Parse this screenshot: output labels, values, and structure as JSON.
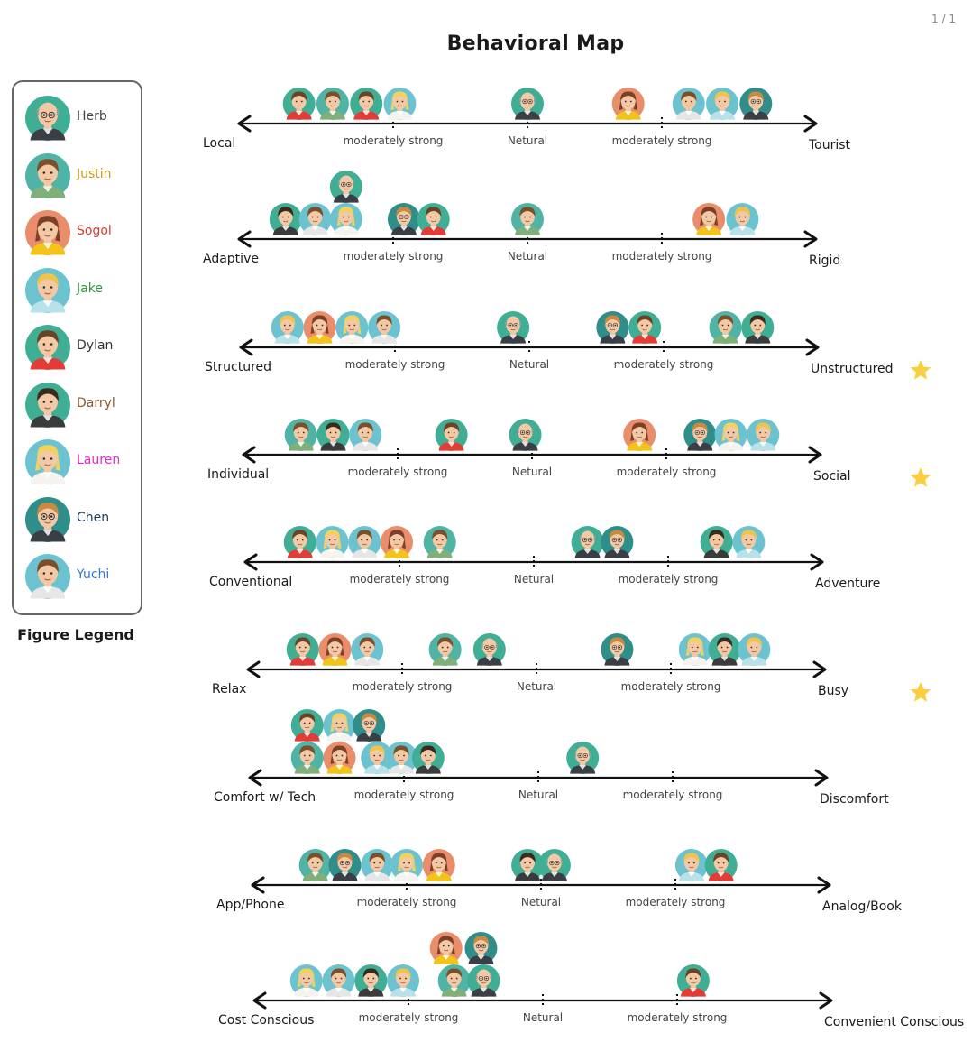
{
  "page_indicator": "1 / 1",
  "title": "Behavioral Map",
  "legend": {
    "caption": "Figure Legend",
    "people": [
      {
        "id": "herb",
        "name": "Herb",
        "name_color": "#444444",
        "skin": "#f3c9a5",
        "hair": "#9aa0a0",
        "shirt": "#3a3f46",
        "bg": "#3fae95",
        "glasses": true,
        "bald": true
      },
      {
        "id": "justin",
        "name": "Justin",
        "name_color": "#c59a16",
        "skin": "#f3c9a5",
        "hair": "#7a4f2a",
        "shirt": "#7fb07a",
        "bg": "#4fb3a6",
        "glasses": false,
        "bald": false
      },
      {
        "id": "sogol",
        "name": "Sogol",
        "name_color": "#d43b2e",
        "skin": "#f3c9a5",
        "hair": "#7a4128",
        "shirt": "#f2c319",
        "bg": "#e98d6b",
        "glasses": false,
        "bald": false
      },
      {
        "id": "jake",
        "name": "Jake",
        "name_color": "#2f9a3a",
        "skin": "#f3c9a5",
        "hair": "#f0c34a",
        "shirt": "#b9e1ea",
        "bg": "#6cc3cf",
        "glasses": false,
        "bald": false
      },
      {
        "id": "dylan",
        "name": "Dylan",
        "name_color": "#333333",
        "skin": "#f3c9a5",
        "hair": "#6b4425",
        "shirt": "#e33b36",
        "bg": "#3fae95",
        "glasses": false,
        "bald": false
      },
      {
        "id": "darryl",
        "name": "Darryl",
        "name_color": "#8a5a2a",
        "skin": "#f3c9a5",
        "hair": "#3b2a1f",
        "shirt": "#3b3b3b",
        "bg": "#3fae95",
        "glasses": false,
        "bald": false
      },
      {
        "id": "lauren",
        "name": "Lauren",
        "name_color": "#e028c9",
        "skin": "#f3c9a5",
        "hair": "#f3d25c",
        "shirt": "#f6f3ef",
        "bg": "#6cc3cf",
        "glasses": false,
        "bald": false
      },
      {
        "id": "chen",
        "name": "Chen",
        "name_color": "#1f3a5a",
        "skin": "#f3c9a5",
        "hair": "#c9893f",
        "shirt": "#3a3f46",
        "bg": "#2f8e8a",
        "glasses": true,
        "bald": false
      },
      {
        "id": "yuchi",
        "name": "Yuchi",
        "name_color": "#2d7ad6",
        "skin": "#f3c9a5",
        "hair": "#7a4f2a",
        "shirt": "#e6e6e6",
        "bg": "#6cc3cf",
        "glasses": false,
        "bald": false
      }
    ]
  },
  "tick_labels": {
    "left": "moderately strong",
    "center": "Netural",
    "right": "moderately strong"
  },
  "star_color": "#f9cf3f",
  "chart_data": {
    "type": "diagram",
    "scale_positions": [
      -2,
      -1,
      0,
      1,
      2
    ],
    "rows": [
      {
        "left": "Local",
        "right": "Tourist",
        "starred": false,
        "tick_label_color": "#555555",
        "placements": [
          {
            "p": "dylan",
            "v": -1.7
          },
          {
            "p": "justin",
            "v": -1.45
          },
          {
            "p": "dylan",
            "v": -1.2
          },
          {
            "p": "lauren",
            "v": -0.95
          },
          {
            "p": "herb",
            "v": 0.0
          },
          {
            "p": "sogol",
            "v": 0.75
          },
          {
            "p": "yuchi",
            "v": 1.2
          },
          {
            "p": "jake",
            "v": 1.45
          },
          {
            "p": "chen",
            "v": 1.7
          }
        ]
      },
      {
        "left": "Adaptive",
        "right": "Rigid",
        "starred": false,
        "tick_label_color": "#555555",
        "placements": [
          {
            "p": "darryl",
            "v": -1.8
          },
          {
            "p": "yuchi",
            "v": -1.58
          },
          {
            "p": "lauren",
            "v": -1.35
          },
          {
            "p": "herb",
            "v": -1.35,
            "level": 2
          },
          {
            "p": "chen",
            "v": -0.92
          },
          {
            "p": "dylan",
            "v": -0.7
          },
          {
            "p": "justin",
            "v": 0.0
          },
          {
            "p": "sogol",
            "v": 1.35
          },
          {
            "p": "jake",
            "v": 1.6
          }
        ]
      },
      {
        "left": "Structured",
        "right": "Unstructured",
        "starred": true,
        "tick_label_color": "#555555",
        "placements": [
          {
            "p": "jake",
            "v": -1.8
          },
          {
            "p": "sogol",
            "v": -1.56
          },
          {
            "p": "lauren",
            "v": -1.32
          },
          {
            "p": "yuchi",
            "v": -1.08
          },
          {
            "p": "herb",
            "v": -0.12
          },
          {
            "p": "chen",
            "v": 0.62
          },
          {
            "p": "dylan",
            "v": 0.86
          },
          {
            "p": "justin",
            "v": 1.46
          },
          {
            "p": "darryl",
            "v": 1.7
          }
        ]
      },
      {
        "left": "Individual",
        "right": "Social",
        "starred": true,
        "tick_label_color": "#555555",
        "placements": [
          {
            "p": "justin",
            "v": -1.72
          },
          {
            "p": "darryl",
            "v": -1.48
          },
          {
            "p": "yuchi",
            "v": -1.24
          },
          {
            "p": "dylan",
            "v": -0.6
          },
          {
            "p": "herb",
            "v": -0.05
          },
          {
            "p": "sogol",
            "v": 0.8
          },
          {
            "p": "chen",
            "v": 1.25
          },
          {
            "p": "lauren",
            "v": 1.48
          },
          {
            "p": "jake",
            "v": 1.72
          }
        ]
      },
      {
        "left": "Conventional",
        "right": "Adventure",
        "starred": false,
        "tick_label_color": "#555555",
        "placements": [
          {
            "p": "dylan",
            "v": -1.74
          },
          {
            "p": "lauren",
            "v": -1.5
          },
          {
            "p": "yuchi",
            "v": -1.26
          },
          {
            "p": "sogol",
            "v": -1.02
          },
          {
            "p": "justin",
            "v": -0.7
          },
          {
            "p": "herb",
            "v": 0.4
          },
          {
            "p": "chen",
            "v": 0.62
          },
          {
            "p": "darryl",
            "v": 1.36
          },
          {
            "p": "jake",
            "v": 1.6
          }
        ]
      },
      {
        "left": "Relax",
        "right": "Busy",
        "starred": true,
        "tick_label_color": "#555555",
        "placements": [
          {
            "p": "dylan",
            "v": -1.74
          },
          {
            "p": "sogol",
            "v": -1.5
          },
          {
            "p": "yuchi",
            "v": -1.26
          },
          {
            "p": "justin",
            "v": -0.68
          },
          {
            "p": "herb",
            "v": -0.35
          },
          {
            "p": "chen",
            "v": 0.6
          },
          {
            "p": "lauren",
            "v": 1.18
          },
          {
            "p": "darryl",
            "v": 1.4
          },
          {
            "p": "jake",
            "v": 1.62
          }
        ]
      },
      {
        "left": "Comfort w/ Tech",
        "right": "Discomfort",
        "starred": false,
        "tick_label_color": "#555555",
        "placements": [
          {
            "p": "justin",
            "v": -1.72
          },
          {
            "p": "sogol",
            "v": -1.48
          },
          {
            "p": "jake",
            "v": -1.2
          },
          {
            "p": "yuchi",
            "v": -1.02
          },
          {
            "p": "darryl",
            "v": -0.82
          },
          {
            "p": "dylan",
            "v": -1.72,
            "level": 2
          },
          {
            "p": "lauren",
            "v": -1.48,
            "level": 2
          },
          {
            "p": "chen",
            "v": -1.26,
            "level": 2
          },
          {
            "p": "herb",
            "v": 0.33
          }
        ]
      },
      {
        "left": "App/Phone",
        "right": "Analog/Book",
        "starred": false,
        "tick_label_color": "#555555",
        "placements": [
          {
            "p": "justin",
            "v": -1.68
          },
          {
            "p": "chen",
            "v": -1.46
          },
          {
            "p": "yuchi",
            "v": -1.22
          },
          {
            "p": "lauren",
            "v": -1.0
          },
          {
            "p": "sogol",
            "v": -0.76
          },
          {
            "p": "darryl",
            "v": -0.1
          },
          {
            "p": "herb",
            "v": 0.1
          },
          {
            "p": "jake",
            "v": 1.12
          },
          {
            "p": "dylan",
            "v": 1.34
          }
        ]
      },
      {
        "left": "Cost Conscious",
        "right": "Convenient Conscious",
        "starred": false,
        "tick_label_color": "#555555",
        "placements": [
          {
            "p": "lauren",
            "v": -1.76
          },
          {
            "p": "yuchi",
            "v": -1.52
          },
          {
            "p": "darryl",
            "v": -1.28
          },
          {
            "p": "jake",
            "v": -1.04
          },
          {
            "p": "justin",
            "v": -0.66
          },
          {
            "p": "herb",
            "v": -0.44
          },
          {
            "p": "sogol",
            "v": -0.72,
            "level": 2
          },
          {
            "p": "chen",
            "v": -0.46,
            "level": 2
          },
          {
            "p": "dylan",
            "v": 1.12
          }
        ]
      }
    ]
  }
}
